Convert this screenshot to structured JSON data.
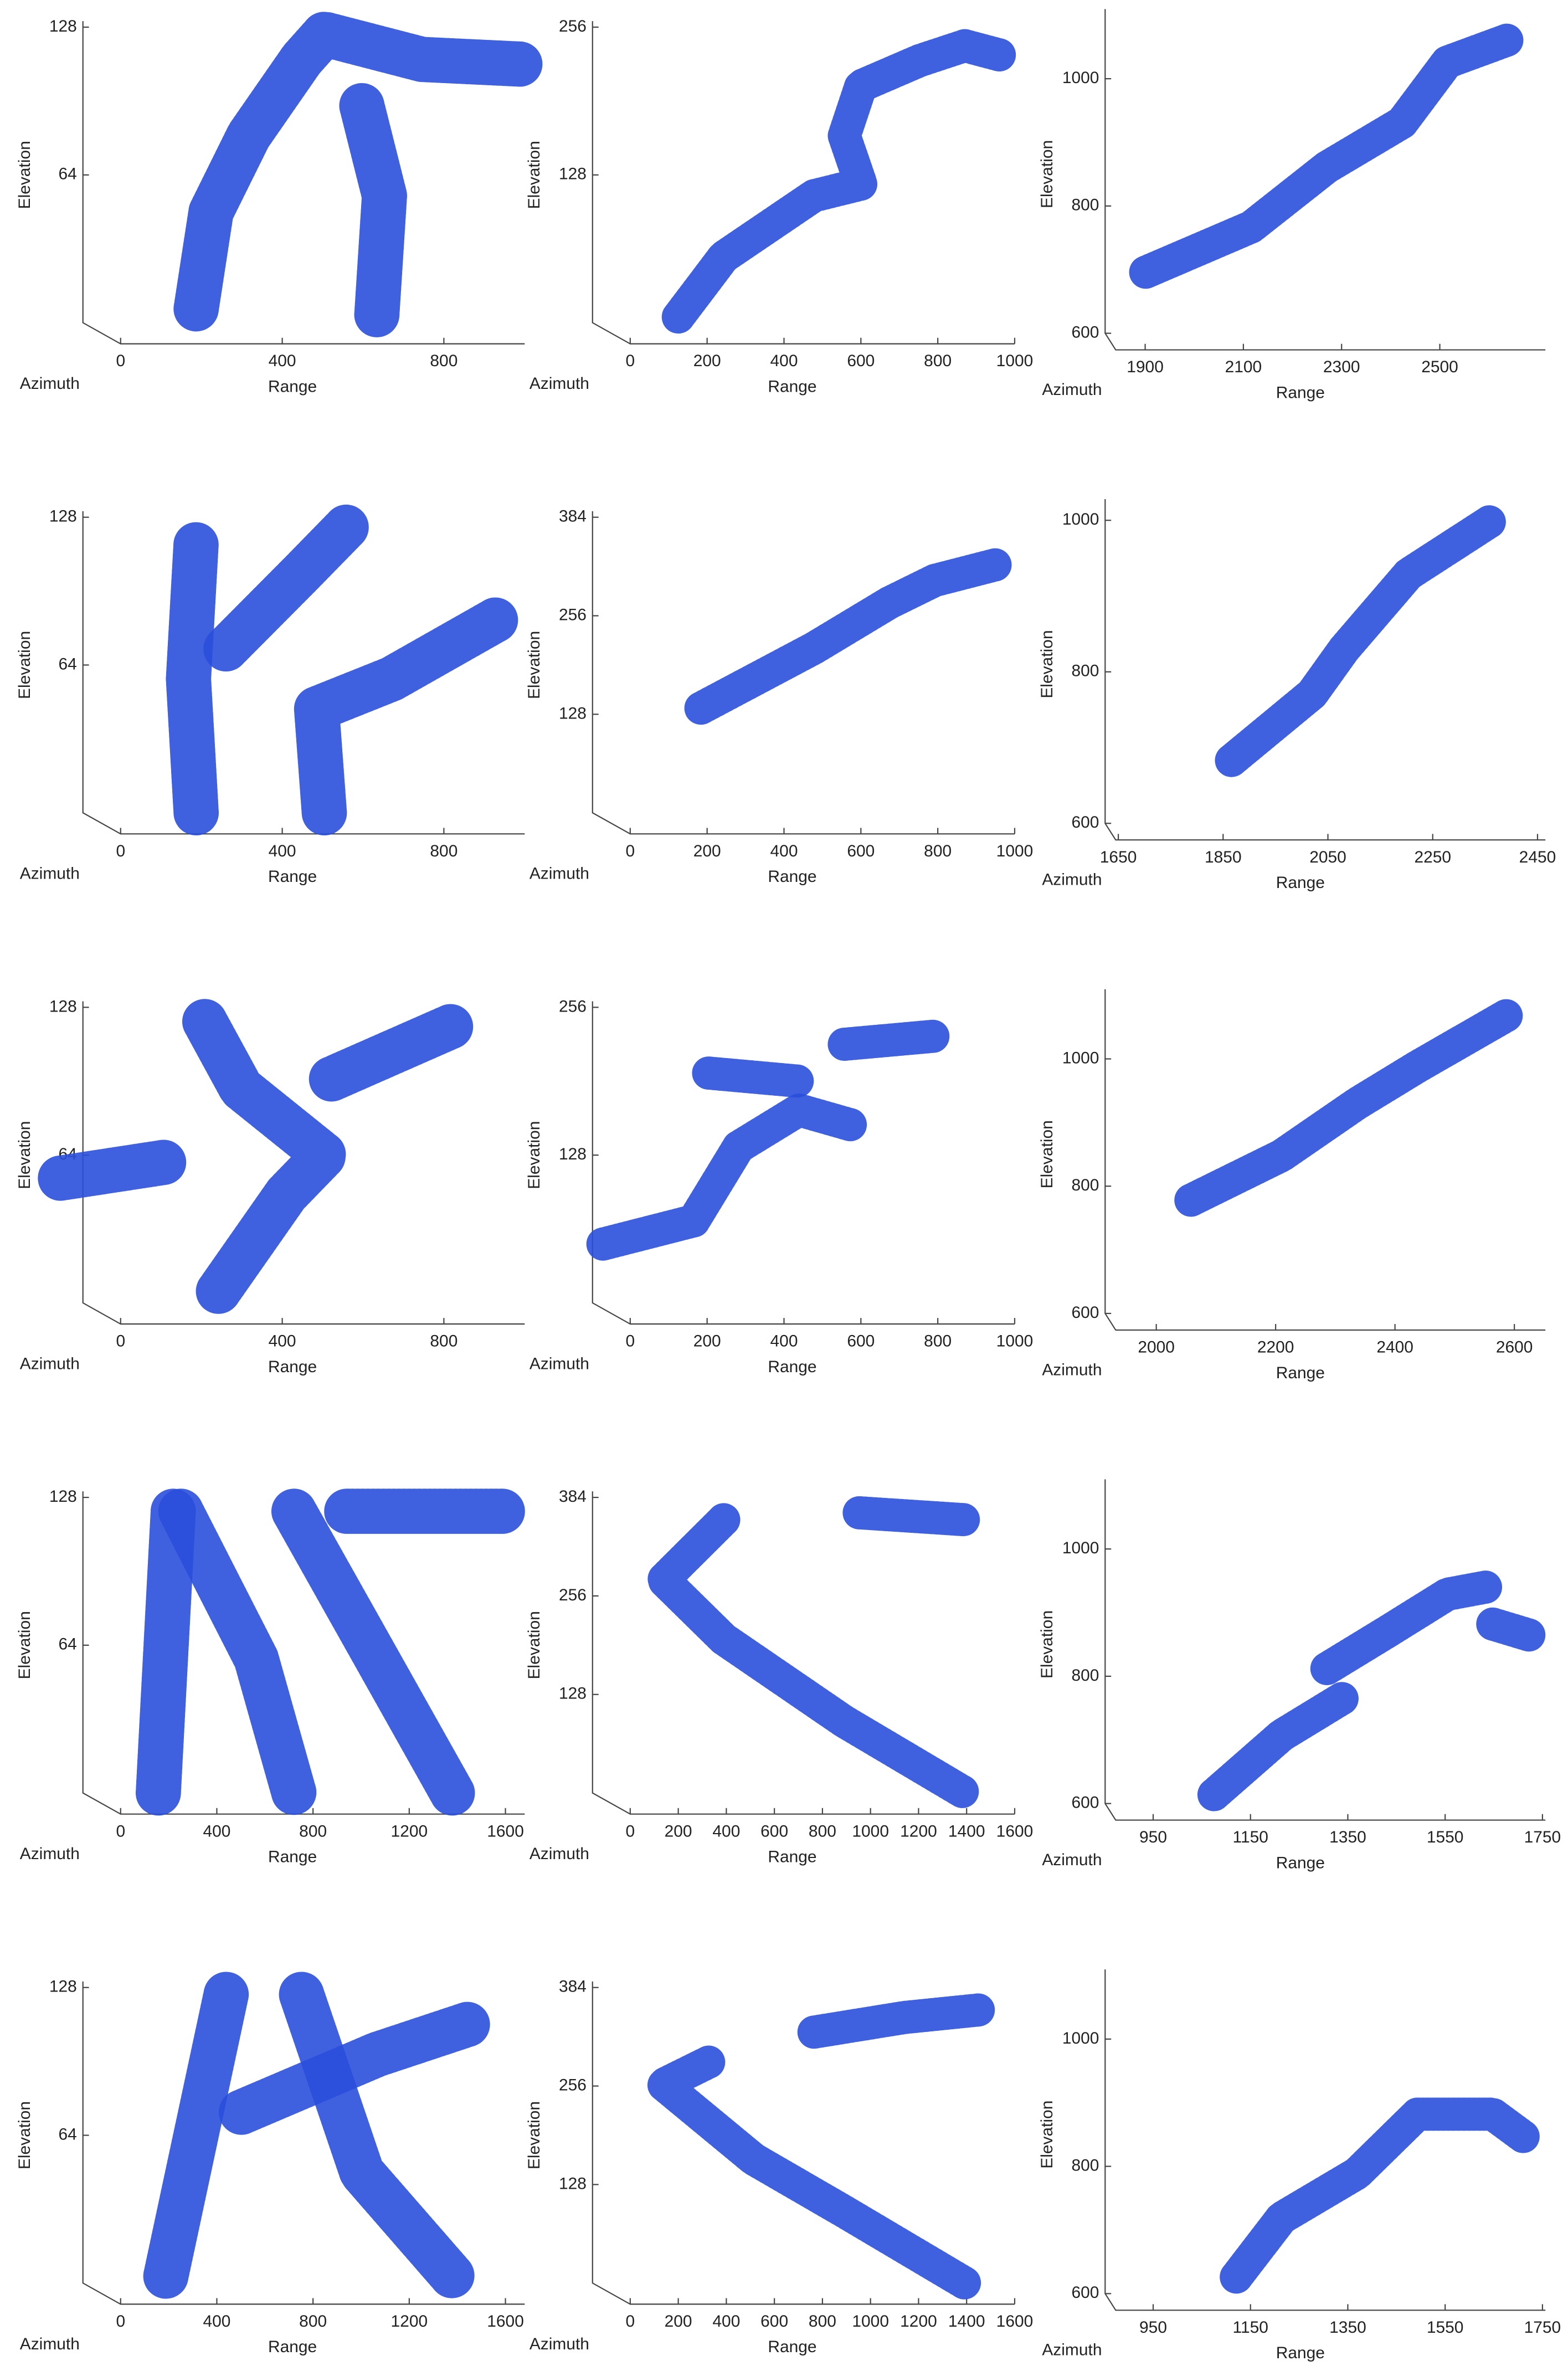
{
  "chart_data": [
    {
      "type": "scatter",
      "xlabel": "Range",
      "ylabel": "Elevation",
      "zlabel": "Azimuth",
      "xlim": [
        0,
        1000
      ],
      "ylim": [
        0,
        128
      ],
      "xticks": [
        0,
        400,
        800
      ],
      "yticks": [
        64,
        128
      ],
      "color": "#2a4fdc",
      "series": [
        {
          "x": [
            187,
            224,
            317,
            448,
            504,
            746,
            988
          ],
          "y": [
            6,
            48,
            81,
            114,
            125,
            114,
            112
          ]
        },
        {
          "x": [
            597,
            653,
            634
          ],
          "y": [
            94,
            55,
            3
          ]
        }
      ]
    },
    {
      "type": "scatter",
      "xlabel": "Range",
      "ylabel": "Elevation",
      "zlabel": "Azimuth",
      "xlim": [
        0,
        1000
      ],
      "ylim": [
        0,
        256
      ],
      "xticks": [
        0,
        200,
        400,
        600,
        800,
        1000
      ],
      "yticks": [
        128,
        256
      ],
      "color": "#2a4fdc",
      "series": [
        {
          "x": [
            125,
            243,
            478,
            600,
            557,
            600,
            753,
            870,
            960
          ],
          "y": [
            5,
            57,
            110,
            120,
            162,
            205,
            227,
            240,
            232
          ]
        }
      ]
    },
    {
      "type": "scatter",
      "xlabel": "Range",
      "ylabel": "Elevation",
      "zlabel": "Azimuth",
      "xlim": [
        1840,
        2715
      ],
      "ylim": [
        600,
        1100
      ],
      "xticks": [
        1900,
        2100,
        2300,
        2500
      ],
      "yticks": [
        600,
        800,
        1000
      ],
      "color": "#2a4fdc",
      "series": [
        {
          "x": [
            1901,
            2116,
            2270,
            2423,
            2515,
            2638
          ],
          "y": [
            696,
            767,
            861,
            931,
            1026,
            1061
          ]
        }
      ]
    },
    {
      "type": "scatter",
      "xlabel": "Range",
      "ylabel": "Elevation",
      "zlabel": "Azimuth",
      "xlim": [
        0,
        1000
      ],
      "ylim": [
        0,
        128
      ],
      "xticks": [
        0,
        400,
        800
      ],
      "yticks": [
        64,
        128
      ],
      "color": "#2a4fdc",
      "series": [
        {
          "x": [
            187,
            168,
            187
          ],
          "y": [
            0,
            58,
            117
          ]
        },
        {
          "x": [
            261,
            448,
            560
          ],
          "y": [
            71,
            104,
            124
          ]
        },
        {
          "x": [
            504,
            485,
            671,
            933
          ],
          "y": [
            0,
            45,
            58,
            84
          ]
        }
      ]
    },
    {
      "type": "scatter",
      "xlabel": "Range",
      "ylabel": "Elevation",
      "zlabel": "Azimuth",
      "xlim": [
        0,
        1000
      ],
      "ylim": [
        0,
        384
      ],
      "xticks": [
        0,
        200,
        400,
        600,
        800,
        1000
      ],
      "yticks": [
        128,
        256,
        384
      ],
      "color": "#2a4fdc",
      "series": [
        {
          "x": [
            184,
            478,
            674,
            792,
            949
          ],
          "y": [
            136,
            214,
            273,
            302,
            322
          ]
        }
      ]
    },
    {
      "type": "scatter",
      "xlabel": "Range",
      "ylabel": "Elevation",
      "zlabel": "Azimuth",
      "xlim": [
        1645,
        2465
      ],
      "ylim": [
        600,
        1020
      ],
      "xticks": [
        1650,
        1850,
        2050,
        2250,
        2450
      ],
      "yticks": [
        600,
        800,
        1000
      ],
      "color": "#2a4fdc",
      "series": [
        {
          "x": [
            1866,
            2020,
            2081,
            2204,
            2358
          ],
          "y": [
            683,
            771,
            830,
            929,
            998
          ]
        }
      ]
    },
    {
      "type": "scatter",
      "xlabel": "Range",
      "ylabel": "Elevation",
      "zlabel": "Azimuth",
      "xlim": [
        0,
        1000
      ],
      "ylim": [
        0,
        128
      ],
      "xticks": [
        0,
        400,
        800
      ],
      "yticks": [
        64,
        128
      ],
      "color": "#2a4fdc",
      "series": [
        {
          "x": [
            242,
            410,
            504,
            298,
            205
          ],
          "y": [
            5,
            47,
            64,
            93,
            123
          ]
        },
        {
          "x": [
            -149,
            112
          ],
          "y": [
            54,
            61
          ]
        },
        {
          "x": [
            522,
            821
          ],
          "y": [
            97,
            120
          ]
        }
      ]
    },
    {
      "type": "scatter",
      "xlabel": "Range",
      "ylabel": "Elevation",
      "zlabel": "Azimuth",
      "xlim": [
        0,
        1000
      ],
      "ylim": [
        0,
        256
      ],
      "xticks": [
        0,
        200,
        400,
        600,
        800,
        1000
      ],
      "yticks": [
        128,
        256
      ],
      "color": "#2a4fdc",
      "series": [
        {
          "x": [
            -71,
            165,
            282,
            439,
            576
          ],
          "y": [
            51,
            71,
            135,
            167,
            154
          ]
        },
        {
          "x": [
            204,
            439
          ],
          "y": [
            199,
            192
          ]
        },
        {
          "x": [
            557,
            792
          ],
          "y": [
            224,
            231
          ]
        }
      ]
    },
    {
      "type": "scatter",
      "xlabel": "Range",
      "ylabel": "Elevation",
      "zlabel": "Azimuth",
      "xlim": [
        1932,
        2652
      ],
      "ylim": [
        600,
        1100
      ],
      "xticks": [
        2000,
        2200,
        2400,
        2600
      ],
      "yticks": [
        600,
        800,
        1000
      ],
      "color": "#2a4fdc",
      "series": [
        {
          "x": [
            2058,
            2210,
            2337,
            2438,
            2590
          ],
          "y": [
            778,
            848,
            930,
            988,
            1070
          ]
        }
      ]
    },
    {
      "type": "scatter",
      "xlabel": "Range",
      "ylabel": "Elevation",
      "zlabel": "Azimuth",
      "xlim": [
        0,
        1680
      ],
      "ylim": [
        0,
        128
      ],
      "xticks": [
        0,
        400,
        800,
        1200,
        1600
      ],
      "yticks": [
        64,
        128
      ],
      "color": "#2a4fdc",
      "series": [
        {
          "x": [
            157,
            219
          ],
          "y": [
            0,
            122
          ]
        },
        {
          "x": [
            251,
            564,
            721
          ],
          "y": [
            122,
            58,
            0
          ]
        },
        {
          "x": [
            721,
            1066,
            1379
          ],
          "y": [
            122,
            58,
            0
          ]
        },
        {
          "x": [
            940,
            1599
          ],
          "y": [
            122,
            122
          ]
        }
      ]
    },
    {
      "type": "scatter",
      "xlabel": "Range",
      "ylabel": "Elevation",
      "zlabel": "Azimuth",
      "xlim": [
        0,
        1600
      ],
      "ylim": [
        0,
        384
      ],
      "xticks": [
        0,
        200,
        400,
        600,
        800,
        1000,
        1200,
        1400,
        1600
      ],
      "yticks": [
        128,
        256,
        384
      ],
      "color": "#2a4fdc",
      "series": [
        {
          "x": [
            389,
            138,
            389,
            890,
            1392
          ],
          "y": [
            355,
            277,
            200,
            93,
            0
          ]
        },
        {
          "x": [
            953,
            1392
          ],
          "y": [
            364,
            355
          ]
        }
      ]
    },
    {
      "type": "scatter",
      "xlabel": "Range",
      "ylabel": "Elevation",
      "zlabel": "Azimuth",
      "xlim": [
        873,
        1756
      ],
      "ylim": [
        600,
        1100
      ],
      "xticks": [
        950,
        1150,
        1350,
        1550,
        1750
      ],
      "yticks": [
        600,
        800,
        1000
      ],
      "color": "#2a4fdc",
      "series": [
        {
          "x": [
            1075,
            1214,
            1338
          ],
          "y": [
            614,
            707,
            765
          ]
        },
        {
          "x": [
            1307,
            1431,
            1555,
            1633
          ],
          "y": [
            812,
            870,
            929,
            940
          ]
        },
        {
          "x": [
            1648,
            1726
          ],
          "y": [
            882,
            864
          ]
        }
      ]
    },
    {
      "type": "scatter",
      "xlabel": "Range",
      "ylabel": "Elevation",
      "zlabel": "Azimuth",
      "xlim": [
        0,
        1680
      ],
      "ylim": [
        0,
        128
      ],
      "xticks": [
        0,
        400,
        800,
        1200,
        1600
      ],
      "yticks": [
        64,
        128
      ],
      "color": "#2a4fdc",
      "series": [
        {
          "x": [
            188,
            439
          ],
          "y": [
            3,
            125
          ]
        },
        {
          "x": [
            752,
            1003,
            1379
          ],
          "y": [
            125,
            48,
            3
          ]
        },
        {
          "x": [
            502,
            1066,
            1442
          ],
          "y": [
            74,
            99,
            112
          ]
        }
      ]
    },
    {
      "type": "scatter",
      "xlabel": "Range",
      "ylabel": "Elevation",
      "zlabel": "Azimuth",
      "xlim": [
        0,
        1600
      ],
      "ylim": [
        0,
        384
      ],
      "xticks": [
        0,
        200,
        400,
        600,
        800,
        1000,
        1200,
        1400,
        1600
      ],
      "yticks": [
        128,
        256,
        384
      ],
      "color": "#2a4fdc",
      "series": [
        {
          "x": [
            326,
            138,
            514,
            890,
            1392
          ],
          "y": [
            287,
            258,
            161,
            93,
            0
          ]
        },
        {
          "x": [
            765,
            1141,
            1455
          ],
          "y": [
            326,
            345,
            355
          ]
        }
      ]
    },
    {
      "type": "scatter",
      "xlabel": "Range",
      "ylabel": "Elevation",
      "zlabel": "Azimuth",
      "xlim": [
        873,
        1756
      ],
      "ylim": [
        600,
        1100
      ],
      "xticks": [
        950,
        1150,
        1350,
        1550,
        1750
      ],
      "yticks": [
        600,
        800,
        1000
      ],
      "color": "#2a4fdc",
      "series": [
        {
          "x": [
            1121,
            1214,
            1369,
            1493,
            1648,
            1710
          ],
          "y": [
            626,
            719,
            789,
            882,
            882,
            847
          ]
        }
      ]
    }
  ]
}
